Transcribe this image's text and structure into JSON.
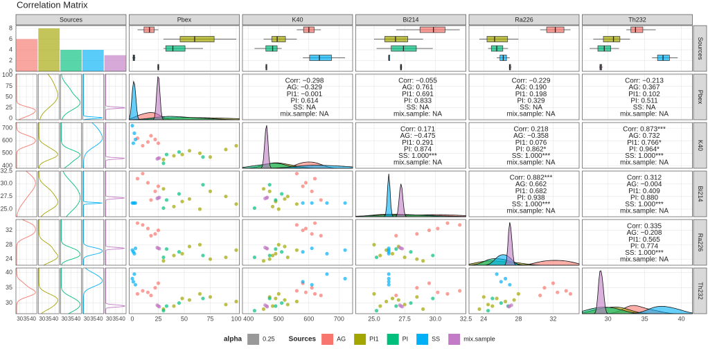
{
  "chart_data": {
    "type": "pairs",
    "title": "Correlation Matrix",
    "variables": [
      "Sources",
      "Pbex",
      "K40",
      "Bi214",
      "Ra226",
      "Th232"
    ],
    "groups": [
      {
        "name": "AG",
        "color": "#F8766D",
        "count": 6,
        "samples": [
          [
            15,
            590,
            30.2,
            32.5,
            33.5
          ],
          [
            22,
            610,
            28.5,
            31.0,
            35.0
          ],
          [
            10,
            560,
            32.0,
            33.5,
            34.0
          ],
          [
            18,
            640,
            26.8,
            30.5,
            32.5
          ],
          [
            25,
            580,
            29.5,
            32.0,
            36.5
          ],
          [
            5,
            620,
            31.0,
            34.0,
            33.0
          ]
        ]
      },
      {
        "name": "PI1",
        "color": "#A3A500",
        "count": 8,
        "samples": [
          [
            40,
            480,
            25.5,
            25.0,
            29.0
          ],
          [
            55,
            520,
            27.0,
            27.5,
            31.0
          ],
          [
            75,
            470,
            28.5,
            24.0,
            32.0
          ],
          [
            100,
            560,
            26.0,
            26.5,
            30.5
          ],
          [
            30,
            450,
            29.0,
            23.5,
            28.0
          ],
          [
            65,
            500,
            25.0,
            28.0,
            33.0
          ],
          [
            90,
            530,
            27.5,
            24.5,
            29.5
          ],
          [
            48,
            490,
            26.5,
            25.5,
            31.5
          ]
        ]
      },
      {
        "name": "PI",
        "color": "#00BF7D",
        "count": 4,
        "samples": [
          [
            30,
            420,
            25.2,
            24.5,
            27.5
          ],
          [
            45,
            510,
            28.0,
            26.0,
            30.0
          ],
          [
            68,
            470,
            29.8,
            25.0,
            31.5
          ],
          [
            33,
            490,
            26.8,
            26.8,
            29.0
          ]
        ]
      },
      {
        "name": "SS",
        "color": "#00B0F6",
        "count": 4,
        "samples": [
          [
            1,
            580,
            26.2,
            26.0,
            37.0
          ],
          [
            2,
            660,
            26.2,
            25.5,
            39.5
          ],
          [
            0,
            720,
            26.2,
            26.5,
            38.0
          ],
          [
            3,
            610,
            26.2,
            27.0,
            36.0
          ]
        ]
      },
      {
        "name": "mix.sample",
        "color": "#C27BC4",
        "count": 3,
        "samples": [
          [
            25,
            460,
            27.2,
            27.0,
            29.0
          ],
          [
            24,
            455,
            27.1,
            27.2,
            29.3
          ],
          [
            26,
            462,
            27.3,
            26.9,
            28.8
          ]
        ]
      }
    ],
    "count_ylim": [
      0,
      8.5
    ],
    "count_yticks": [
      0,
      2,
      4,
      6,
      8
    ],
    "source_xlim": [
      27,
      43
    ],
    "source_xticks": [
      30,
      35,
      40
    ],
    "scales": [
      {
        "lim": [
          -3,
          103
        ],
        "ticks": [
          0,
          25,
          50,
          75,
          100
        ]
      },
      {
        "lim": [
          380,
          745
        ],
        "ticks": [
          400,
          500,
          600,
          700
        ]
      },
      {
        "lim": [
          23.5,
          32.5
        ],
        "ticks": [
          {
            "value": 25,
            "label": "25.0"
          },
          27.5,
          {
            "value": 30,
            "label": "30.0"
          },
          32.5
        ]
      },
      {
        "lim": [
          22.3,
          35
        ],
        "ticks": [
          24,
          28,
          32
        ]
      },
      {
        "lim": [
          26.5,
          41.5
        ],
        "ticks": [
          30,
          35,
          40
        ]
      }
    ],
    "correlations": [
      [
        "Corr: −0.298",
        "AG: −0.329",
        "PI1: −0.001",
        "PI: 0.614",
        "SS: NA",
        "mix.sample: NA"
      ],
      [
        "Corr: −0.055",
        "AG: 0.761",
        "PI1: 0.691",
        "PI: 0.833",
        "SS: NA",
        "mix.sample: NA"
      ],
      [
        "Corr: −0.229",
        "AG: 0.190",
        "PI1: 0.198",
        "PI: 0.329",
        "SS: NA",
        "mix.sample: NA"
      ],
      [
        "Corr: −0.213",
        "AG: 0.367",
        "PI1: 0.102",
        "PI: 0.511",
        "SS: NA",
        "mix.sample: NA"
      ],
      [
        "Corr: 0.171",
        "AG: −0.475",
        "PI1: 0.291",
        "PI: 0.874",
        "SS: 1.000***",
        "mix.sample: NA"
      ],
      [
        "Corr: 0.218",
        "AG: −0.358",
        "PI1: 0.076",
        "PI: 0.862*",
        "SS: 1.000***",
        "mix.sample: NA"
      ],
      [
        "Corr: 0.873***",
        "AG: 0.732",
        "PI1: 0.766*",
        "PI: 0.964*",
        "SS: 1.000***",
        "mix.sample: NA"
      ],
      [
        "Corr: 0.882***",
        "AG: 0.662",
        "PI1: 0.682",
        "PI: 0.938",
        "SS: 1.000***",
        "mix.sample: NA"
      ],
      [
        "Corr: 0.312",
        "AG: −0.004",
        "PI1: 0.409",
        "PI: 0.880",
        "SS: 1.000***",
        "mix.sample: NA"
      ],
      [
        "Corr: 0.335",
        "AG: −0.208",
        "PI1: 0.565",
        "PI: 0.774",
        "SS: 1.000***",
        "mix.sample: NA"
      ]
    ],
    "legend": {
      "position": "bottom",
      "alpha_title": "alpha",
      "alpha_value": 0.25,
      "title": "Sources"
    },
    "grid": true
  }
}
